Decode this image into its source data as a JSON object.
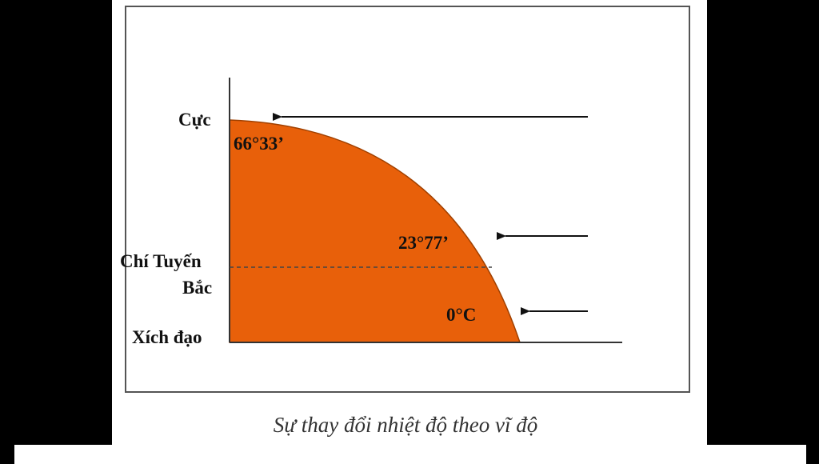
{
  "labels": {
    "pole": "Cực",
    "pole_angle": "66°33’",
    "tropic_line1": "Chí Tuyến",
    "tropic_line2": "Bắc",
    "equator": "Xích đạo",
    "tropic_angle": "23°77’",
    "equator_temp": "0°C"
  },
  "caption": "Sự thay đổi nhiệt độ theo vĩ độ"
}
